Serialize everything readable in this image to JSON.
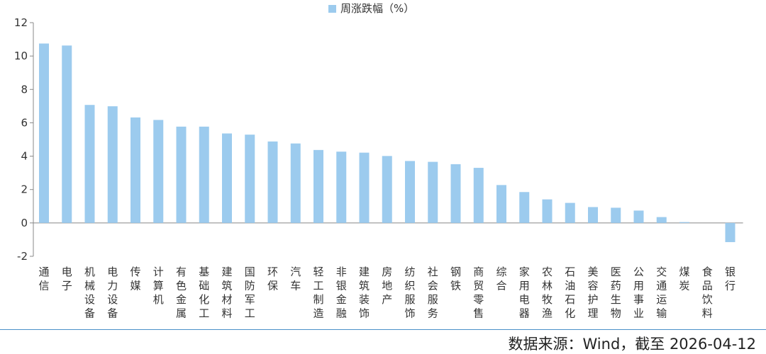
{
  "chart_data": {
    "type": "bar",
    "title": "",
    "xlabel": "",
    "ylabel": "",
    "legend": {
      "position": "top-center",
      "entries": [
        "周涨跌幅（%）"
      ]
    },
    "ylim": [
      -2,
      12
    ],
    "yticks": [
      -2,
      0,
      2,
      4,
      6,
      8,
      10,
      12
    ],
    "grid": false,
    "bar_color": "#9ccbee",
    "categories": [
      "通信",
      "电子",
      "机械设备",
      "电力设备",
      "传媒",
      "计算机",
      "有色金属",
      "基础化工",
      "建筑材料",
      "国防军工",
      "环保",
      "汽车",
      "轻工制造",
      "非银金融",
      "建筑装饰",
      "房地产",
      "纺织服饰",
      "社会服务",
      "钢铁",
      "商贸零售",
      "综合",
      "家用电器",
      "农林牧渔",
      "石油石化",
      "美容护理",
      "医药生物",
      "公用事业",
      "交通运输",
      "煤炭",
      "食品饮料",
      "银行"
    ],
    "series": [
      {
        "name": "周涨跌幅（%）",
        "values": [
          10.75,
          10.63,
          7.07,
          6.99,
          6.32,
          6.17,
          5.77,
          5.77,
          5.36,
          5.29,
          4.88,
          4.76,
          4.37,
          4.27,
          4.21,
          4.01,
          3.71,
          3.66,
          3.52,
          3.3,
          2.27,
          1.85,
          1.41,
          1.2,
          0.95,
          0.91,
          0.74,
          0.35,
          0.05,
          0.0,
          -1.15
        ]
      }
    ]
  },
  "footer": {
    "source": "数据来源：Wind，截至 2026-04-12"
  }
}
